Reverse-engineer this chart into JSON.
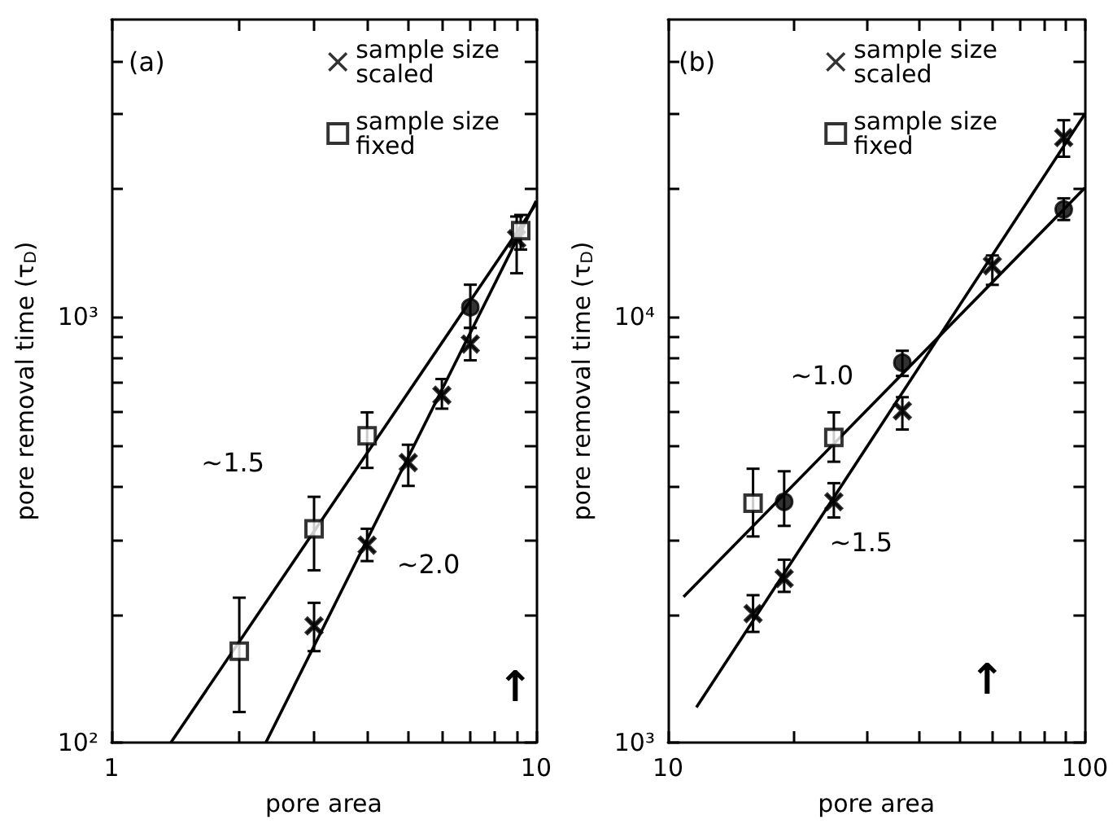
{
  "chart_data": [
    {
      "type": "scatter",
      "xlabel": "pore area",
      "ylabel": "pore removal time (τ$_{D}$)",
      "log": "xy",
      "grid": false,
      "legend": "top right",
      "annotations": [
        "(a)",
        "~1.5",
        "~2.0",
        "↑"
      ],
      "xlim": [
        1,
        10
      ],
      "xticks": [
        1,
        {
          "value": 2,
          "label": null
        },
        {
          "value": 3,
          "label": null
        },
        {
          "value": 4,
          "label": null
        },
        {
          "value": 5,
          "label": null
        },
        {
          "value": 6,
          "label": null
        },
        {
          "value": 7,
          "label": null
        },
        {
          "value": 8,
          "label": null
        },
        {
          "value": 9,
          "label": null
        },
        10
      ],
      "ylim": [
        100,
        5000
      ],
      "yticks": [
        {
          "value": 100,
          "label": "10²"
        },
        {
          "value": 200,
          "label": null
        },
        {
          "value": 300,
          "label": null
        },
        {
          "value": 400,
          "label": null
        },
        {
          "value": 500,
          "label": null
        },
        {
          "value": 600,
          "label": null
        },
        {
          "value": 700,
          "label": null
        },
        {
          "value": 800,
          "label": null
        },
        {
          "value": 900,
          "label": null
        },
        {
          "value": 1000,
          "label": "10³"
        },
        {
          "value": 2000,
          "label": null
        },
        {
          "value": 3000,
          "label": null
        },
        {
          "value": 4000,
          "label": null
        }
      ],
      "series": [
        {
          "name": "sample size\nscaled",
          "color": "#000000",
          "marker": "cross",
          "x": [
            3,
            4,
            5,
            6,
            7,
            9
          ],
          "values": [
            188,
            291,
            455,
            655,
            864,
            1527
          ],
          "errors": [
            [
              164,
              213
            ],
            [
              267,
              318
            ],
            [
              401,
              501
            ],
            [
              609,
              715
            ],
            [
              791,
              943
            ],
            [
              1267,
              1722
            ]
          ]
        },
        {
          "name": "sample size\nfixed",
          "color": "#000000",
          "marker": "square",
          "x": [
            2,
            3,
            4,
            9.2
          ],
          "values": [
            164,
            318,
            526,
            1595
          ],
          "errors": [
            [
              118,
              219
            ],
            [
              254,
              378
            ],
            [
              442,
              597
            ],
            [
              1440,
              1737
            ]
          ]
        },
        {
          "color": "#000000",
          "marker": "circle",
          "x": [
            7
          ],
          "values": [
            1054
          ],
          "errors": [
            [
              943,
              1191
            ]
          ]
        },
        {
          "type": "line",
          "color": "#000000",
          "marker": "none",
          "x": [
            1.38,
            10
          ],
          "values": [
            100,
            1845
          ]
        },
        {
          "type": "line",
          "color": "#000000",
          "marker": "none",
          "x": [
            2.31,
            10
          ],
          "values": [
            100,
            1874
          ]
        }
      ]
    },
    {
      "type": "scatter",
      "xlabel": "pore area",
      "ylabel": "pore removal time (τ$_{D}$)",
      "log": "xy",
      "grid": false,
      "legend": "top right",
      "annotations": [
        "(b)",
        "~1.0",
        "~1.5",
        "↑"
      ],
      "xlim": [
        10,
        100
      ],
      "xticks": [
        10,
        {
          "value": 20,
          "label": null
        },
        {
          "value": 30,
          "label": null
        },
        {
          "value": 40,
          "label": null
        },
        {
          "value": 50,
          "label": null
        },
        {
          "value": 60,
          "label": null
        },
        {
          "value": 70,
          "label": null
        },
        {
          "value": 80,
          "label": null
        },
        {
          "value": 90,
          "label": null
        },
        100
      ],
      "ylim": [
        1000,
        50000
      ],
      "yticks": [
        {
          "value": 1000,
          "label": "10³"
        },
        {
          "value": 2000,
          "label": null
        },
        {
          "value": 3000,
          "label": null
        },
        {
          "value": 4000,
          "label": null
        },
        {
          "value": 5000,
          "label": null
        },
        {
          "value": 6000,
          "label": null
        },
        {
          "value": 7000,
          "label": null
        },
        {
          "value": 8000,
          "label": null
        },
        {
          "value": 9000,
          "label": null
        },
        {
          "value": 10000,
          "label": "10⁴"
        },
        {
          "value": 20000,
          "label": null
        },
        {
          "value": 30000,
          "label": null
        },
        {
          "value": 40000,
          "label": null
        }
      ],
      "series": [
        {
          "name": "sample size\nscaled",
          "color": "#000000",
          "marker": "cross",
          "x": [
            16,
            19,
            25,
            36.5,
            60,
            89
          ],
          "values": [
            2010,
            2430,
            3680,
            6020,
            13200,
            26400
          ],
          "errors": [
            [
              1820,
              2220
            ],
            [
              2260,
              2690
            ],
            [
              3380,
              4070
            ],
            [
              5440,
              6480
            ],
            [
              11900,
              13950
            ],
            [
              23800,
              29000
            ]
          ]
        },
        {
          "name": "sample size\nfixed",
          "color": "#000000",
          "marker": "square",
          "x": [
            16,
            25
          ],
          "values": [
            3650,
            5210
          ],
          "errors": [
            [
              3050,
              4400
            ],
            [
              4570,
              5970
            ]
          ]
        },
        {
          "color": "#000000",
          "marker": "circle",
          "x": [
            19,
            36.5,
            89
          ],
          "values": [
            3680,
            7810,
            17900
          ],
          "errors": [
            [
              3230,
              4340
            ],
            [
              7270,
              8330
            ],
            [
              16900,
              19000
            ]
          ]
        },
        {
          "type": "line",
          "color": "#000000",
          "marker": "none",
          "x": [
            10.9,
            100
          ],
          "values": [
            2200,
            20100
          ]
        },
        {
          "type": "line",
          "color": "#000000",
          "marker": "none",
          "x": [
            11.7,
            100
          ],
          "values": [
            1210,
            30000
          ]
        }
      ]
    }
  ]
}
